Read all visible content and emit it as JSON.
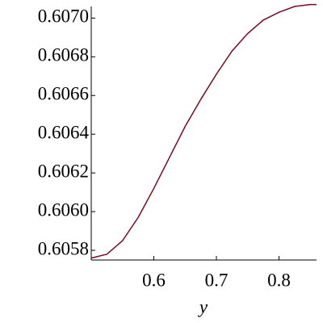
{
  "chart_data": {
    "type": "line",
    "x_label": "y",
    "x": [
      0.5,
      0.525,
      0.55,
      0.575,
      0.6,
      0.625,
      0.65,
      0.675,
      0.7,
      0.725,
      0.75,
      0.775,
      0.8,
      0.825,
      0.85,
      0.86
    ],
    "series": [
      {
        "color": "#7a0a1e",
        "values": [
          0.60576,
          0.60578,
          0.60585,
          0.60597,
          0.60612,
          0.60628,
          0.60644,
          0.60658,
          0.60671,
          0.60683,
          0.60692,
          0.60699,
          0.60703,
          0.60706,
          0.60707,
          0.60707
        ]
      }
    ],
    "xlim": [
      0.5,
      0.86
    ],
    "ylim": [
      0.60575,
      0.60706
    ],
    "xticks": [
      0.6,
      0.7,
      0.8
    ],
    "yticks": [
      0.6058,
      {
        "value": 0.606,
        "label": "0.6060"
      },
      0.6062,
      0.6064,
      0.6066,
      0.6068,
      {
        "value": 0.607,
        "label": "0.6070"
      }
    ]
  }
}
